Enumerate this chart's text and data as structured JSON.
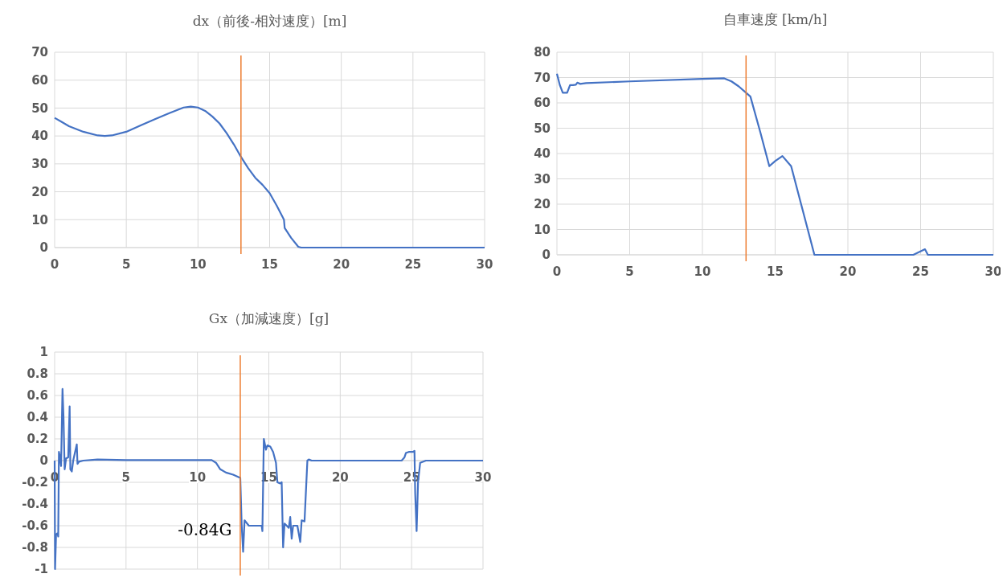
{
  "chart_data": [
    {
      "type": "line",
      "title": "dx（前後-相対速度）[m]",
      "xlim": [
        0,
        30
      ],
      "xticks": [
        0,
        5,
        10,
        15,
        20,
        25,
        30
      ],
      "ylim": [
        0,
        70
      ],
      "yticks": [
        0,
        10,
        20,
        30,
        40,
        50,
        60,
        70
      ],
      "grid": true,
      "ref_lines": [
        {
          "axis": "x",
          "value": 13,
          "color": "#ed7d31"
        }
      ],
      "series": [
        {
          "color": "#4472c4",
          "x": [
            0,
            0.5,
            1,
            2,
            3,
            3.5,
            4,
            5,
            6,
            7,
            8,
            9,
            9.5,
            10,
            10.5,
            11,
            11.5,
            12,
            12.5,
            13,
            13.5,
            14,
            14.5,
            15,
            15.5,
            16,
            16.05,
            16.5,
            17,
            17.2,
            30
          ],
          "values": [
            46.5,
            45,
            43.5,
            41.5,
            40.2,
            40,
            40.2,
            41.5,
            43.8,
            46,
            48.2,
            50.2,
            50.5,
            50.2,
            49,
            47,
            44.5,
            41,
            37,
            32.5,
            28.5,
            25,
            22.5,
            19.5,
            15,
            10,
            7,
            3.5,
            0.3,
            0,
            0
          ]
        }
      ]
    },
    {
      "type": "line",
      "title": "自車速度 [km/h]",
      "xlim": [
        0,
        30
      ],
      "xticks": [
        0,
        5,
        10,
        15,
        20,
        25,
        30
      ],
      "ylim": [
        0,
        80
      ],
      "yticks": [
        0,
        10,
        20,
        30,
        40,
        50,
        60,
        70,
        80
      ],
      "grid": true,
      "ref_lines": [
        {
          "axis": "x",
          "value": 13,
          "color": "#ed7d31"
        }
      ],
      "series": [
        {
          "color": "#4472c4",
          "x": [
            0,
            0.2,
            0.4,
            0.7,
            0.9,
            1.1,
            1.3,
            1.4,
            1.6,
            2,
            5,
            10,
            11.5,
            12,
            12.5,
            13,
            13.3,
            14,
            14.6,
            15,
            15.5,
            16.1,
            17.7,
            24.5,
            25.3,
            25.5,
            30
          ],
          "values": [
            71.5,
            67,
            64,
            64,
            67,
            67,
            67.2,
            68,
            67.5,
            67.8,
            68.5,
            69.5,
            69.7,
            68.5,
            66.5,
            64,
            62.5,
            48,
            35,
            37,
            39,
            35,
            0,
            0,
            2.2,
            0,
            0
          ]
        }
      ]
    },
    {
      "type": "line",
      "title": "Gx（加減速度）[g]",
      "xlim": [
        0,
        30
      ],
      "xticks": [
        0,
        5,
        10,
        15,
        20,
        25,
        30
      ],
      "ylim": [
        -1,
        1
      ],
      "yticks": [
        -1,
        -0.8,
        -0.6,
        -0.4,
        -0.2,
        0,
        0.2,
        0.4,
        0.6,
        0.8,
        1
      ],
      "grid": true,
      "ref_lines": [
        {
          "axis": "x",
          "value": 13,
          "color": "#ed7d31"
        }
      ],
      "annotations": [
        {
          "text": "-0.84G",
          "x": 13.2,
          "y": -0.84
        }
      ],
      "series": [
        {
          "color": "#4472c4",
          "x": [
            0,
            0.03,
            0.1,
            0.2,
            0.25,
            0.3,
            0.35,
            0.45,
            0.55,
            0.62,
            0.7,
            0.8,
            0.95,
            1.05,
            1.1,
            1.2,
            1.3,
            1.55,
            1.6,
            1.7,
            2,
            3,
            5,
            11,
            11.3,
            11.6,
            12,
            12.5,
            13,
            13.1,
            13.2,
            13.3,
            13.6,
            14.5,
            14.55,
            14.65,
            14.8,
            14.9,
            15.1,
            15.3,
            15.5,
            15.6,
            15.8,
            15.9,
            16,
            16.1,
            16.4,
            16.5,
            16.6,
            16.7,
            17,
            17.2,
            17.3,
            17.5,
            17.7,
            17.8,
            18,
            24.3,
            24.5,
            24.6,
            24.8,
            25.1,
            25.2,
            25.25,
            25.35,
            25.45,
            25.6,
            26,
            30
          ],
          "values": [
            0,
            -1,
            -0.68,
            -0.67,
            -0.7,
            0.08,
            0.05,
            -0.05,
            0.66,
            0.4,
            -0.08,
            0.02,
            0.03,
            0.5,
            -0.08,
            -0.1,
            0,
            0.15,
            -0.03,
            -0.01,
            0,
            0.01,
            0.005,
            0.005,
            -0.02,
            -0.08,
            -0.11,
            -0.13,
            -0.16,
            -0.6,
            -0.84,
            -0.55,
            -0.6,
            -0.6,
            -0.65,
            0.2,
            0.1,
            0.14,
            0.13,
            0.08,
            -0.02,
            -0.2,
            -0.21,
            -0.2,
            -0.8,
            -0.58,
            -0.62,
            -0.52,
            -0.72,
            -0.6,
            -0.6,
            -0.75,
            -0.55,
            -0.56,
            0,
            0.01,
            0,
            0,
            0.03,
            0.07,
            0.08,
            0.08,
            0.09,
            -0.3,
            -0.65,
            -0.2,
            -0.02,
            0,
            0
          ]
        }
      ]
    }
  ]
}
